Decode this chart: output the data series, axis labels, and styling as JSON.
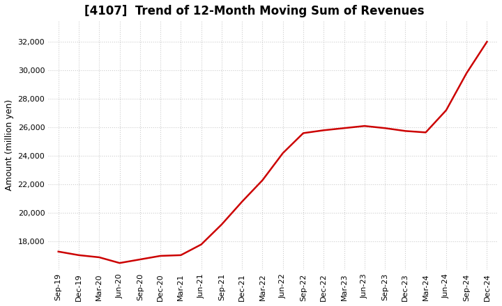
{
  "title": "[4107]  Trend of 12-Month Moving Sum of Revenues",
  "ylabel": "Amount (million yen)",
  "ylim": [
    16000,
    33500
  ],
  "yticks": [
    18000,
    20000,
    22000,
    24000,
    26000,
    28000,
    30000,
    32000
  ],
  "background_color": "#ffffff",
  "plot_bg_color": "#ffffff",
  "line_color": "#cc0000",
  "dates_x": [
    0,
    1,
    2,
    3,
    4,
    5,
    6,
    7,
    8,
    9,
    10,
    11,
    12,
    13,
    14,
    15,
    16,
    17,
    18,
    19,
    20,
    21
  ],
  "values": [
    17300,
    17050,
    16900,
    16500,
    16750,
    17000,
    17050,
    17800,
    19200,
    20800,
    22300,
    24200,
    25600,
    25800,
    25950,
    26100,
    25950,
    25750,
    25650,
    27200,
    29800,
    32000
  ],
  "xtick_labels": [
    "Sep-19",
    "Dec-19",
    "Mar-20",
    "Jun-20",
    "Sep-20",
    "Dec-20",
    "Mar-21",
    "Jun-21",
    "Sep-21",
    "Dec-21",
    "Mar-22",
    "Jun-22",
    "Sep-22",
    "Dec-22",
    "Mar-23",
    "Jun-23",
    "Sep-23",
    "Dec-23",
    "Mar-24",
    "Jun-24",
    "Sep-24",
    "Dec-24"
  ],
  "grid_color": "#cccccc",
  "title_fontsize": 12,
  "tick_fontsize": 8,
  "ylabel_fontsize": 9,
  "linewidth": 1.8
}
